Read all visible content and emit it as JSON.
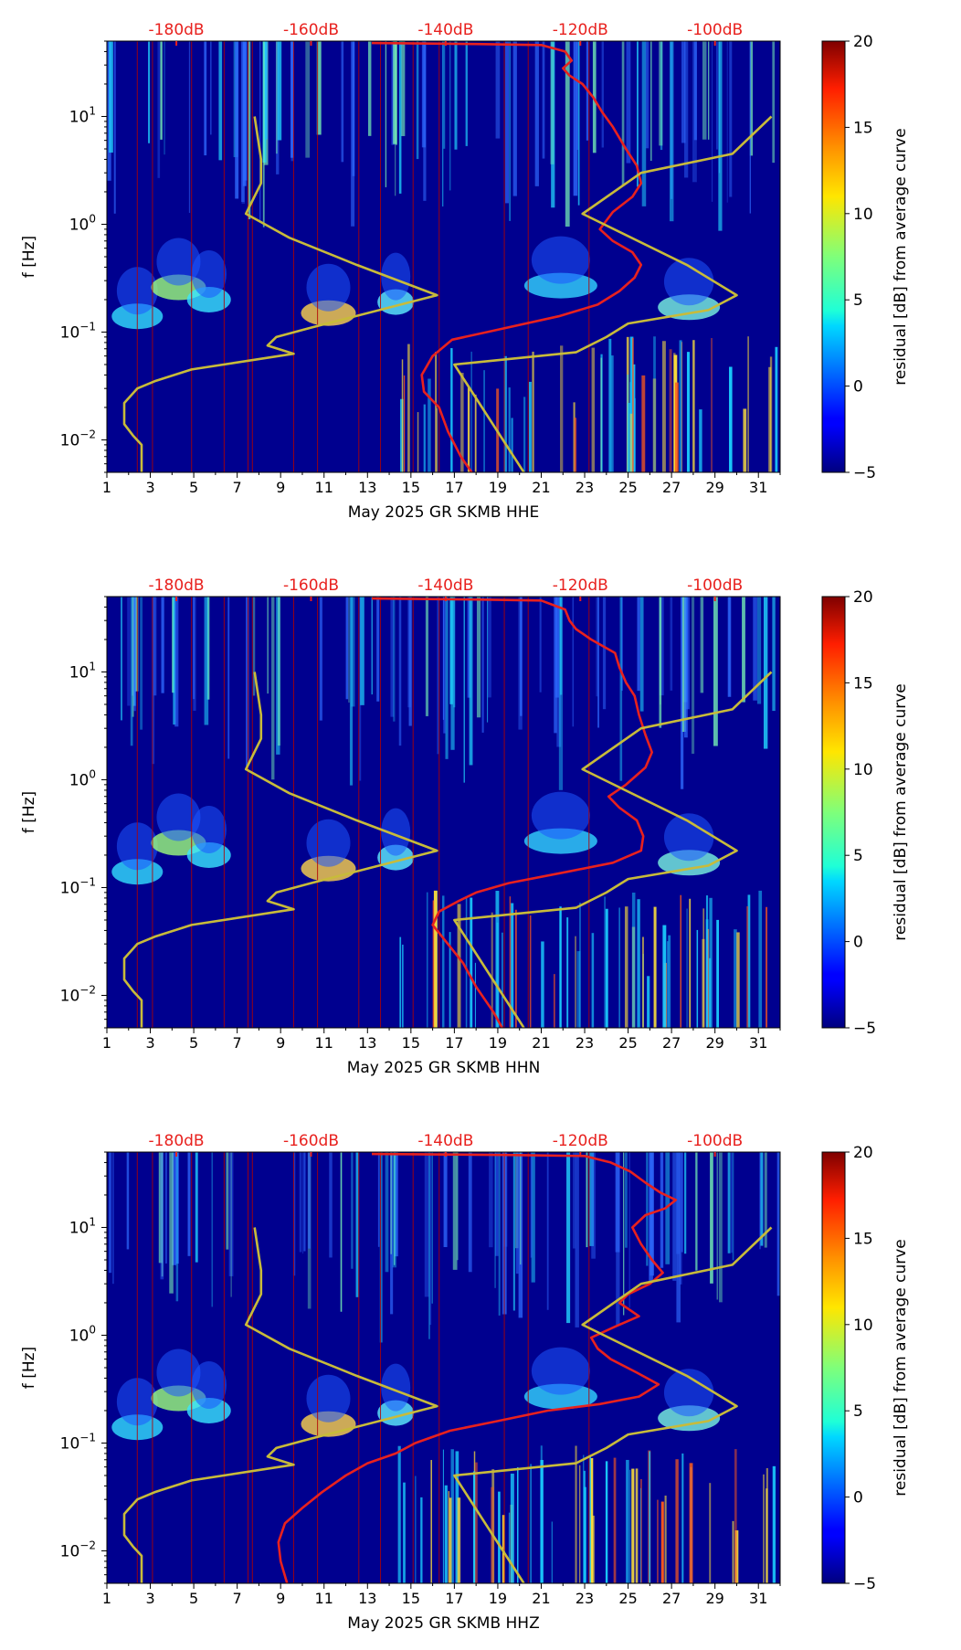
{
  "colors": {
    "background": "#00008f",
    "psd_curve": "#e8211e",
    "noise_model": "#c8bb3a",
    "db_label": "#e8211e",
    "axis": "#000000"
  },
  "colorbar": {
    "label": "residual [dB] from average curve",
    "min": -5,
    "max": 20,
    "ticks": [
      "20",
      "15",
      "10",
      "5",
      "0",
      "−5"
    ],
    "tick_values": [
      20,
      15,
      10,
      5,
      0,
      -5
    ]
  },
  "chart_data": [
    {
      "type": "heatmap",
      "title": "",
      "xlabel": "May 2025 GR SKMB  HHE",
      "ylabel": "f [Hz]",
      "xlim": [
        1,
        32
      ],
      "ylim": [
        0.005,
        50
      ],
      "x_ticks": [
        "1",
        "3",
        "5",
        "7",
        "9",
        "11",
        "13",
        "15",
        "17",
        "19",
        "21",
        "23",
        "25",
        "27",
        "29",
        "31"
      ],
      "y_ticks": [
        {
          "value": 10,
          "base": "10",
          "exp": "1"
        },
        {
          "value": 1,
          "base": "10",
          "exp": "0"
        },
        {
          "value": 0.1,
          "base": "10",
          "exp": "−1"
        },
        {
          "value": 0.01,
          "base": "10",
          "exp": "−2"
        }
      ],
      "top_db_ticks": [
        "-180dB",
        "-160dB",
        "-140dB",
        "-120dB",
        "-100dB"
      ],
      "top_db_positions": [
        4.2,
        10.4,
        16.6,
        22.8,
        29.0
      ],
      "series": [
        {
          "name": "PSD curve",
          "points": [
            [
              13.2,
              48
            ],
            [
              18.0,
              47
            ],
            [
              21.0,
              46
            ],
            [
              22.1,
              40
            ],
            [
              22.4,
              33
            ],
            [
              22.0,
              28
            ],
            [
              22.3,
              24
            ],
            [
              22.9,
              20
            ],
            [
              23.4,
              15
            ],
            [
              23.8,
              11
            ],
            [
              24.3,
              8
            ],
            [
              24.9,
              5
            ],
            [
              25.4,
              3.5
            ],
            [
              25.6,
              2.4
            ],
            [
              25.2,
              1.8
            ],
            [
              24.3,
              1.3
            ],
            [
              23.7,
              0.9
            ],
            [
              24.3,
              0.7
            ],
            [
              25.2,
              0.55
            ],
            [
              25.6,
              0.42
            ],
            [
              25.3,
              0.32
            ],
            [
              24.6,
              0.24
            ],
            [
              23.6,
              0.18
            ],
            [
              21.8,
              0.14
            ],
            [
              18.5,
              0.1
            ],
            [
              16.9,
              0.085
            ],
            [
              16.0,
              0.06
            ],
            [
              15.5,
              0.04
            ],
            [
              15.6,
              0.028
            ],
            [
              16.3,
              0.02
            ],
            [
              16.7,
              0.012
            ],
            [
              17.3,
              0.007
            ],
            [
              17.8,
              0.005
            ]
          ]
        },
        {
          "name": "Noise model",
          "points": [
            [
              2.6,
              0.005
            ],
            [
              2.6,
              0.009
            ],
            [
              2.2,
              0.011
            ],
            [
              1.8,
              0.014
            ],
            [
              1.8,
              0.022
            ],
            [
              2.4,
              0.03
            ],
            [
              3.2,
              0.035
            ],
            [
              4.9,
              0.045
            ],
            [
              9.6,
              0.063
            ],
            [
              8.4,
              0.075
            ],
            [
              8.8,
              0.09
            ],
            [
              10.4,
              0.11
            ],
            [
              16.2,
              0.22
            ],
            [
              12.5,
              0.42
            ],
            [
              9.4,
              0.75
            ],
            [
              7.4,
              1.25
            ],
            [
              8.1,
              2.4
            ],
            [
              8.1,
              4.0
            ],
            [
              7.8,
              10.0
            ]
          ]
        },
        {
          "name": "Noise model",
          "points": [
            [
              20.2,
              0.005
            ],
            [
              17.0,
              0.05
            ],
            [
              22.6,
              0.065
            ],
            [
              24.0,
              0.09
            ],
            [
              25.0,
              0.12
            ],
            [
              28.7,
              0.16
            ],
            [
              30.0,
              0.22
            ],
            [
              27.7,
              0.42
            ],
            [
              22.9,
              1.25
            ],
            [
              25.6,
              3.0
            ],
            [
              29.8,
              4.5
            ],
            [
              31.6,
              10.0
            ]
          ]
        }
      ],
      "dark_lines_x": [
        2.4,
        3.1,
        4.9,
        6.4,
        7.5,
        7.7,
        9.6,
        10.7,
        12.6,
        13.6,
        15.1,
        16.3,
        19.3,
        20.4,
        23.2
      ]
    },
    {
      "type": "heatmap",
      "title": "",
      "xlabel": "May 2025 GR SKMB  HHN",
      "ylabel": "f [Hz]",
      "xlim": [
        1,
        32
      ],
      "ylim": [
        0.005,
        50
      ],
      "x_ticks": [
        "1",
        "3",
        "5",
        "7",
        "9",
        "11",
        "13",
        "15",
        "17",
        "19",
        "21",
        "23",
        "25",
        "27",
        "29",
        "31"
      ],
      "y_ticks": [
        {
          "value": 10,
          "base": "10",
          "exp": "1"
        },
        {
          "value": 1,
          "base": "10",
          "exp": "0"
        },
        {
          "value": 0.1,
          "base": "10",
          "exp": "−1"
        },
        {
          "value": 0.01,
          "base": "10",
          "exp": "−2"
        }
      ],
      "top_db_ticks": [
        "-180dB",
        "-160dB",
        "-140dB",
        "-120dB",
        "-100dB"
      ],
      "top_db_positions": [
        4.2,
        10.4,
        16.6,
        22.8,
        29.0
      ],
      "series": [
        {
          "name": "PSD curve",
          "points": [
            [
              13.2,
              48
            ],
            [
              18.0,
              47
            ],
            [
              21.0,
              46
            ],
            [
              22.1,
              38
            ],
            [
              22.3,
              30
            ],
            [
              22.6,
              25
            ],
            [
              23.3,
              20
            ],
            [
              24.4,
              15
            ],
            [
              24.6,
              11
            ],
            [
              24.9,
              8
            ],
            [
              25.3,
              6
            ],
            [
              25.5,
              4
            ],
            [
              25.8,
              2.6
            ],
            [
              26.1,
              1.8
            ],
            [
              25.8,
              1.3
            ],
            [
              24.9,
              0.9
            ],
            [
              24.1,
              0.7
            ],
            [
              24.6,
              0.55
            ],
            [
              25.4,
              0.42
            ],
            [
              25.7,
              0.3
            ],
            [
              25.6,
              0.22
            ],
            [
              24.3,
              0.17
            ],
            [
              22.2,
              0.14
            ],
            [
              19.5,
              0.11
            ],
            [
              18.0,
              0.09
            ],
            [
              17.2,
              0.075
            ],
            [
              16.3,
              0.06
            ],
            [
              16.0,
              0.045
            ],
            [
              16.7,
              0.03
            ],
            [
              17.4,
              0.02
            ],
            [
              18.0,
              0.012
            ],
            [
              18.8,
              0.007
            ],
            [
              19.2,
              0.005
            ]
          ]
        },
        {
          "name": "Noise model",
          "points": [
            [
              2.6,
              0.005
            ],
            [
              2.6,
              0.009
            ],
            [
              2.2,
              0.011
            ],
            [
              1.8,
              0.014
            ],
            [
              1.8,
              0.022
            ],
            [
              2.4,
              0.03
            ],
            [
              3.2,
              0.035
            ],
            [
              4.9,
              0.045
            ],
            [
              9.6,
              0.063
            ],
            [
              8.4,
              0.075
            ],
            [
              8.8,
              0.09
            ],
            [
              10.4,
              0.11
            ],
            [
              16.2,
              0.22
            ],
            [
              12.5,
              0.42
            ],
            [
              9.4,
              0.75
            ],
            [
              7.4,
              1.25
            ],
            [
              8.1,
              2.4
            ],
            [
              8.1,
              4.0
            ],
            [
              7.8,
              10.0
            ]
          ]
        },
        {
          "name": "Noise model",
          "points": [
            [
              20.2,
              0.005
            ],
            [
              17.0,
              0.05
            ],
            [
              22.6,
              0.065
            ],
            [
              24.0,
              0.09
            ],
            [
              25.0,
              0.12
            ],
            [
              28.7,
              0.16
            ],
            [
              30.0,
              0.22
            ],
            [
              27.7,
              0.42
            ],
            [
              22.9,
              1.25
            ],
            [
              25.6,
              3.0
            ],
            [
              29.8,
              4.5
            ],
            [
              31.6,
              10.0
            ]
          ]
        }
      ],
      "dark_lines_x": [
        2.4,
        3.1,
        4.9,
        6.4,
        7.5,
        7.7,
        9.6,
        10.7,
        12.6,
        13.6,
        15.1,
        16.3,
        19.3,
        20.4,
        23.2
      ]
    },
    {
      "type": "heatmap",
      "title": "",
      "xlabel": "May 2025 GR SKMB  HHZ",
      "ylabel": "f [Hz]",
      "xlim": [
        1,
        32
      ],
      "ylim": [
        0.005,
        50
      ],
      "x_ticks": [
        "1",
        "3",
        "5",
        "7",
        "9",
        "11",
        "13",
        "15",
        "17",
        "19",
        "21",
        "23",
        "25",
        "27",
        "29",
        "31"
      ],
      "y_ticks": [
        {
          "value": 10,
          "base": "10",
          "exp": "1"
        },
        {
          "value": 1,
          "base": "10",
          "exp": "0"
        },
        {
          "value": 0.1,
          "base": "10",
          "exp": "−1"
        },
        {
          "value": 0.01,
          "base": "10",
          "exp": "−2"
        }
      ],
      "top_db_ticks": [
        "-180dB",
        "-160dB",
        "-140dB",
        "-120dB",
        "-100dB"
      ],
      "top_db_positions": [
        4.2,
        10.4,
        16.6,
        22.8,
        29.0
      ],
      "series": [
        {
          "name": "PSD curve",
          "points": [
            [
              13.2,
              48
            ],
            [
              19.5,
              47
            ],
            [
              23.0,
              46
            ],
            [
              24.2,
              40
            ],
            [
              25.1,
              33
            ],
            [
              25.8,
              26
            ],
            [
              26.5,
              21
            ],
            [
              27.2,
              18
            ],
            [
              26.7,
              15
            ],
            [
              25.8,
              13
            ],
            [
              25.2,
              10
            ],
            [
              25.6,
              7
            ],
            [
              26.1,
              5
            ],
            [
              26.6,
              3.8
            ],
            [
              26.0,
              3.0
            ],
            [
              25.0,
              2.4
            ],
            [
              24.6,
              2.0
            ],
            [
              25.5,
              1.5
            ],
            [
              24.4,
              1.2
            ],
            [
              23.3,
              0.95
            ],
            [
              23.6,
              0.75
            ],
            [
              24.2,
              0.6
            ],
            [
              25.4,
              0.45
            ],
            [
              26.4,
              0.35
            ],
            [
              25.5,
              0.27
            ],
            [
              23.7,
              0.23
            ],
            [
              21.3,
              0.2
            ],
            [
              19.0,
              0.16
            ],
            [
              16.8,
              0.13
            ],
            [
              15.2,
              0.1
            ],
            [
              14.3,
              0.08
            ],
            [
              13.0,
              0.065
            ],
            [
              12.0,
              0.05
            ],
            [
              10.9,
              0.035
            ],
            [
              10.0,
              0.025
            ],
            [
              9.2,
              0.018
            ],
            [
              8.9,
              0.012
            ],
            [
              9.0,
              0.008
            ],
            [
              9.3,
              0.005
            ]
          ]
        },
        {
          "name": "Noise model",
          "points": [
            [
              2.6,
              0.005
            ],
            [
              2.6,
              0.009
            ],
            [
              2.2,
              0.011
            ],
            [
              1.8,
              0.014
            ],
            [
              1.8,
              0.022
            ],
            [
              2.4,
              0.03
            ],
            [
              3.2,
              0.035
            ],
            [
              4.9,
              0.045
            ],
            [
              9.6,
              0.063
            ],
            [
              8.4,
              0.075
            ],
            [
              8.8,
              0.09
            ],
            [
              10.4,
              0.11
            ],
            [
              16.2,
              0.22
            ],
            [
              12.5,
              0.42
            ],
            [
              9.4,
              0.75
            ],
            [
              7.4,
              1.25
            ],
            [
              8.1,
              2.4
            ],
            [
              8.1,
              4.0
            ],
            [
              7.8,
              10.0
            ]
          ]
        },
        {
          "name": "Noise model",
          "points": [
            [
              20.2,
              0.005
            ],
            [
              17.0,
              0.05
            ],
            [
              22.6,
              0.065
            ],
            [
              24.0,
              0.09
            ],
            [
              25.0,
              0.12
            ],
            [
              28.7,
              0.16
            ],
            [
              30.0,
              0.22
            ],
            [
              27.7,
              0.42
            ],
            [
              22.9,
              1.25
            ],
            [
              25.6,
              3.0
            ],
            [
              29.8,
              4.5
            ],
            [
              31.6,
              10.0
            ]
          ]
        }
      ],
      "dark_lines_x": [
        2.4,
        3.1,
        4.9,
        6.4,
        7.5,
        7.7,
        9.6,
        10.7,
        12.6,
        13.6,
        15.1,
        16.3,
        19.3,
        20.4,
        23.2
      ]
    }
  ]
}
